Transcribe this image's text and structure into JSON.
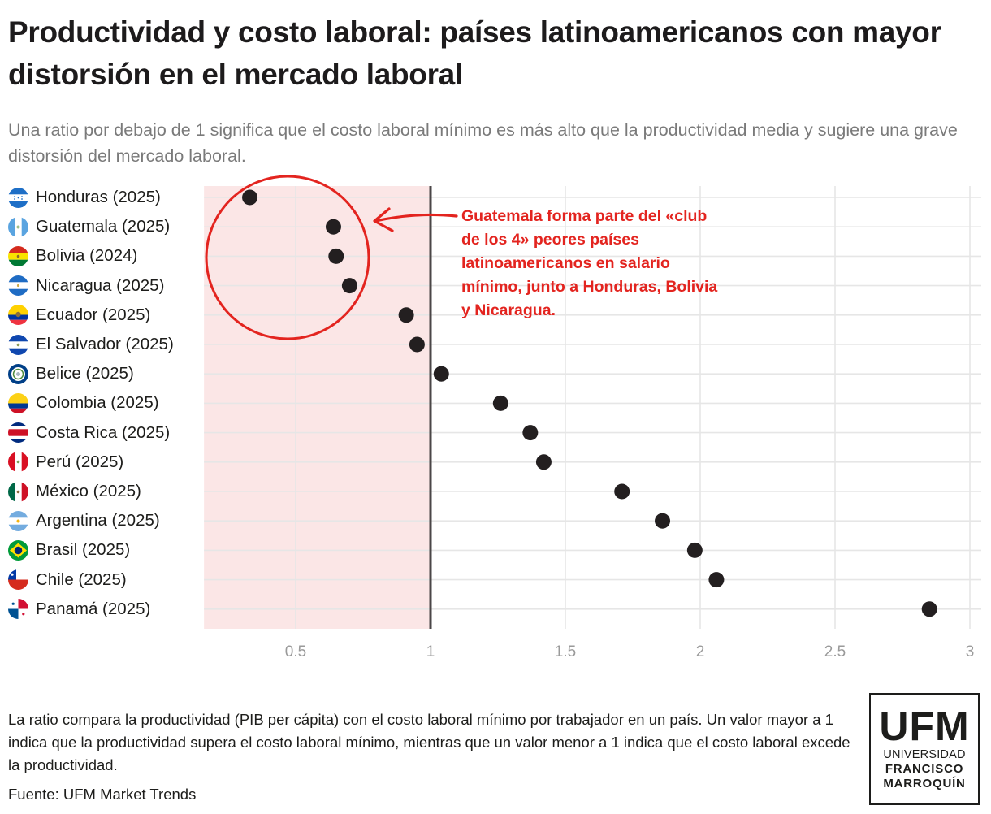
{
  "header": {
    "title": "Productividad y costo laboral: países latinoamericanos con mayor distorsión en el mercado laboral",
    "subtitle": "Una ratio por debajo de 1 significa que el costo laboral mínimo es más alto que la productividad media y sugiere una grave distorsión del mercado laboral."
  },
  "chart_data": {
    "type": "scatter",
    "orientation": "horizontal-dot-plot",
    "title": "Productividad y costo laboral: países latinoamericanos con mayor distorsión en el mercado laboral",
    "xlabel": "",
    "ylabel": "",
    "xlim": [
      0.16,
      3.03
    ],
    "x_ticks": [
      0.5,
      1,
      1.5,
      2,
      2.5,
      3
    ],
    "x_tick_labels": [
      "0.5",
      "1",
      "1.5",
      "2",
      "2.5",
      "3"
    ],
    "grid": true,
    "reference_line": {
      "x": 1
    },
    "shaded_region": {
      "from": 0.16,
      "to": 1,
      "color": "#fbe6e6"
    },
    "point_color": "#231f20",
    "categories": [
      "Honduras (2025)",
      "Guatemala (2025)",
      "Bolivia (2024)",
      "Nicaragua (2025)",
      "Ecuador (2025)",
      "El Salvador (2025)",
      "Belice (2025)",
      "Colombia (2025)",
      "Costa Rica (2025)",
      "Perú (2025)",
      "México (2025)",
      "Argentina (2025)",
      "Brasil (2025)",
      "Chile (2025)",
      "Panamá (2025)"
    ],
    "flags": [
      "honduras-flag",
      "guatemala-flag",
      "bolivia-flag",
      "nicaragua-flag",
      "ecuador-flag",
      "el-salvador-flag",
      "belice-flag",
      "colombia-flag",
      "costa-rica-flag",
      "peru-flag",
      "mexico-flag",
      "argentina-flag",
      "brasil-flag",
      "chile-flag",
      "panama-flag"
    ],
    "values": [
      0.33,
      0.64,
      0.65,
      0.7,
      0.91,
      0.95,
      1.04,
      1.26,
      1.37,
      1.42,
      1.71,
      1.86,
      1.98,
      2.06,
      2.85
    ],
    "annotation": {
      "text": "Guatemala forma parte del «club de los 4» peores países latinoamericanos en salario mínimo, junto a Honduras, Bolivia y Nicaragua.",
      "color": "#e3241f",
      "highlighted": [
        "Honduras (2025)",
        "Guatemala (2025)",
        "Bolivia (2024)",
        "Nicaragua (2025)"
      ]
    }
  },
  "footer": {
    "note": "La ratio compara la productividad (PIB per cápita) con el costo laboral mínimo por trabajador en un país. Un valor mayor a 1 indica que la productividad supera el costo laboral mínimo, mientras que un valor menor a 1 indica que el costo laboral excede la productividad.",
    "source": "Fuente: UFM Market Trends"
  },
  "logo": {
    "line1": "UFM",
    "line2": "UNIVERSIDAD",
    "line3": "FRANCISCO",
    "line4": "MARROQUÍN"
  }
}
